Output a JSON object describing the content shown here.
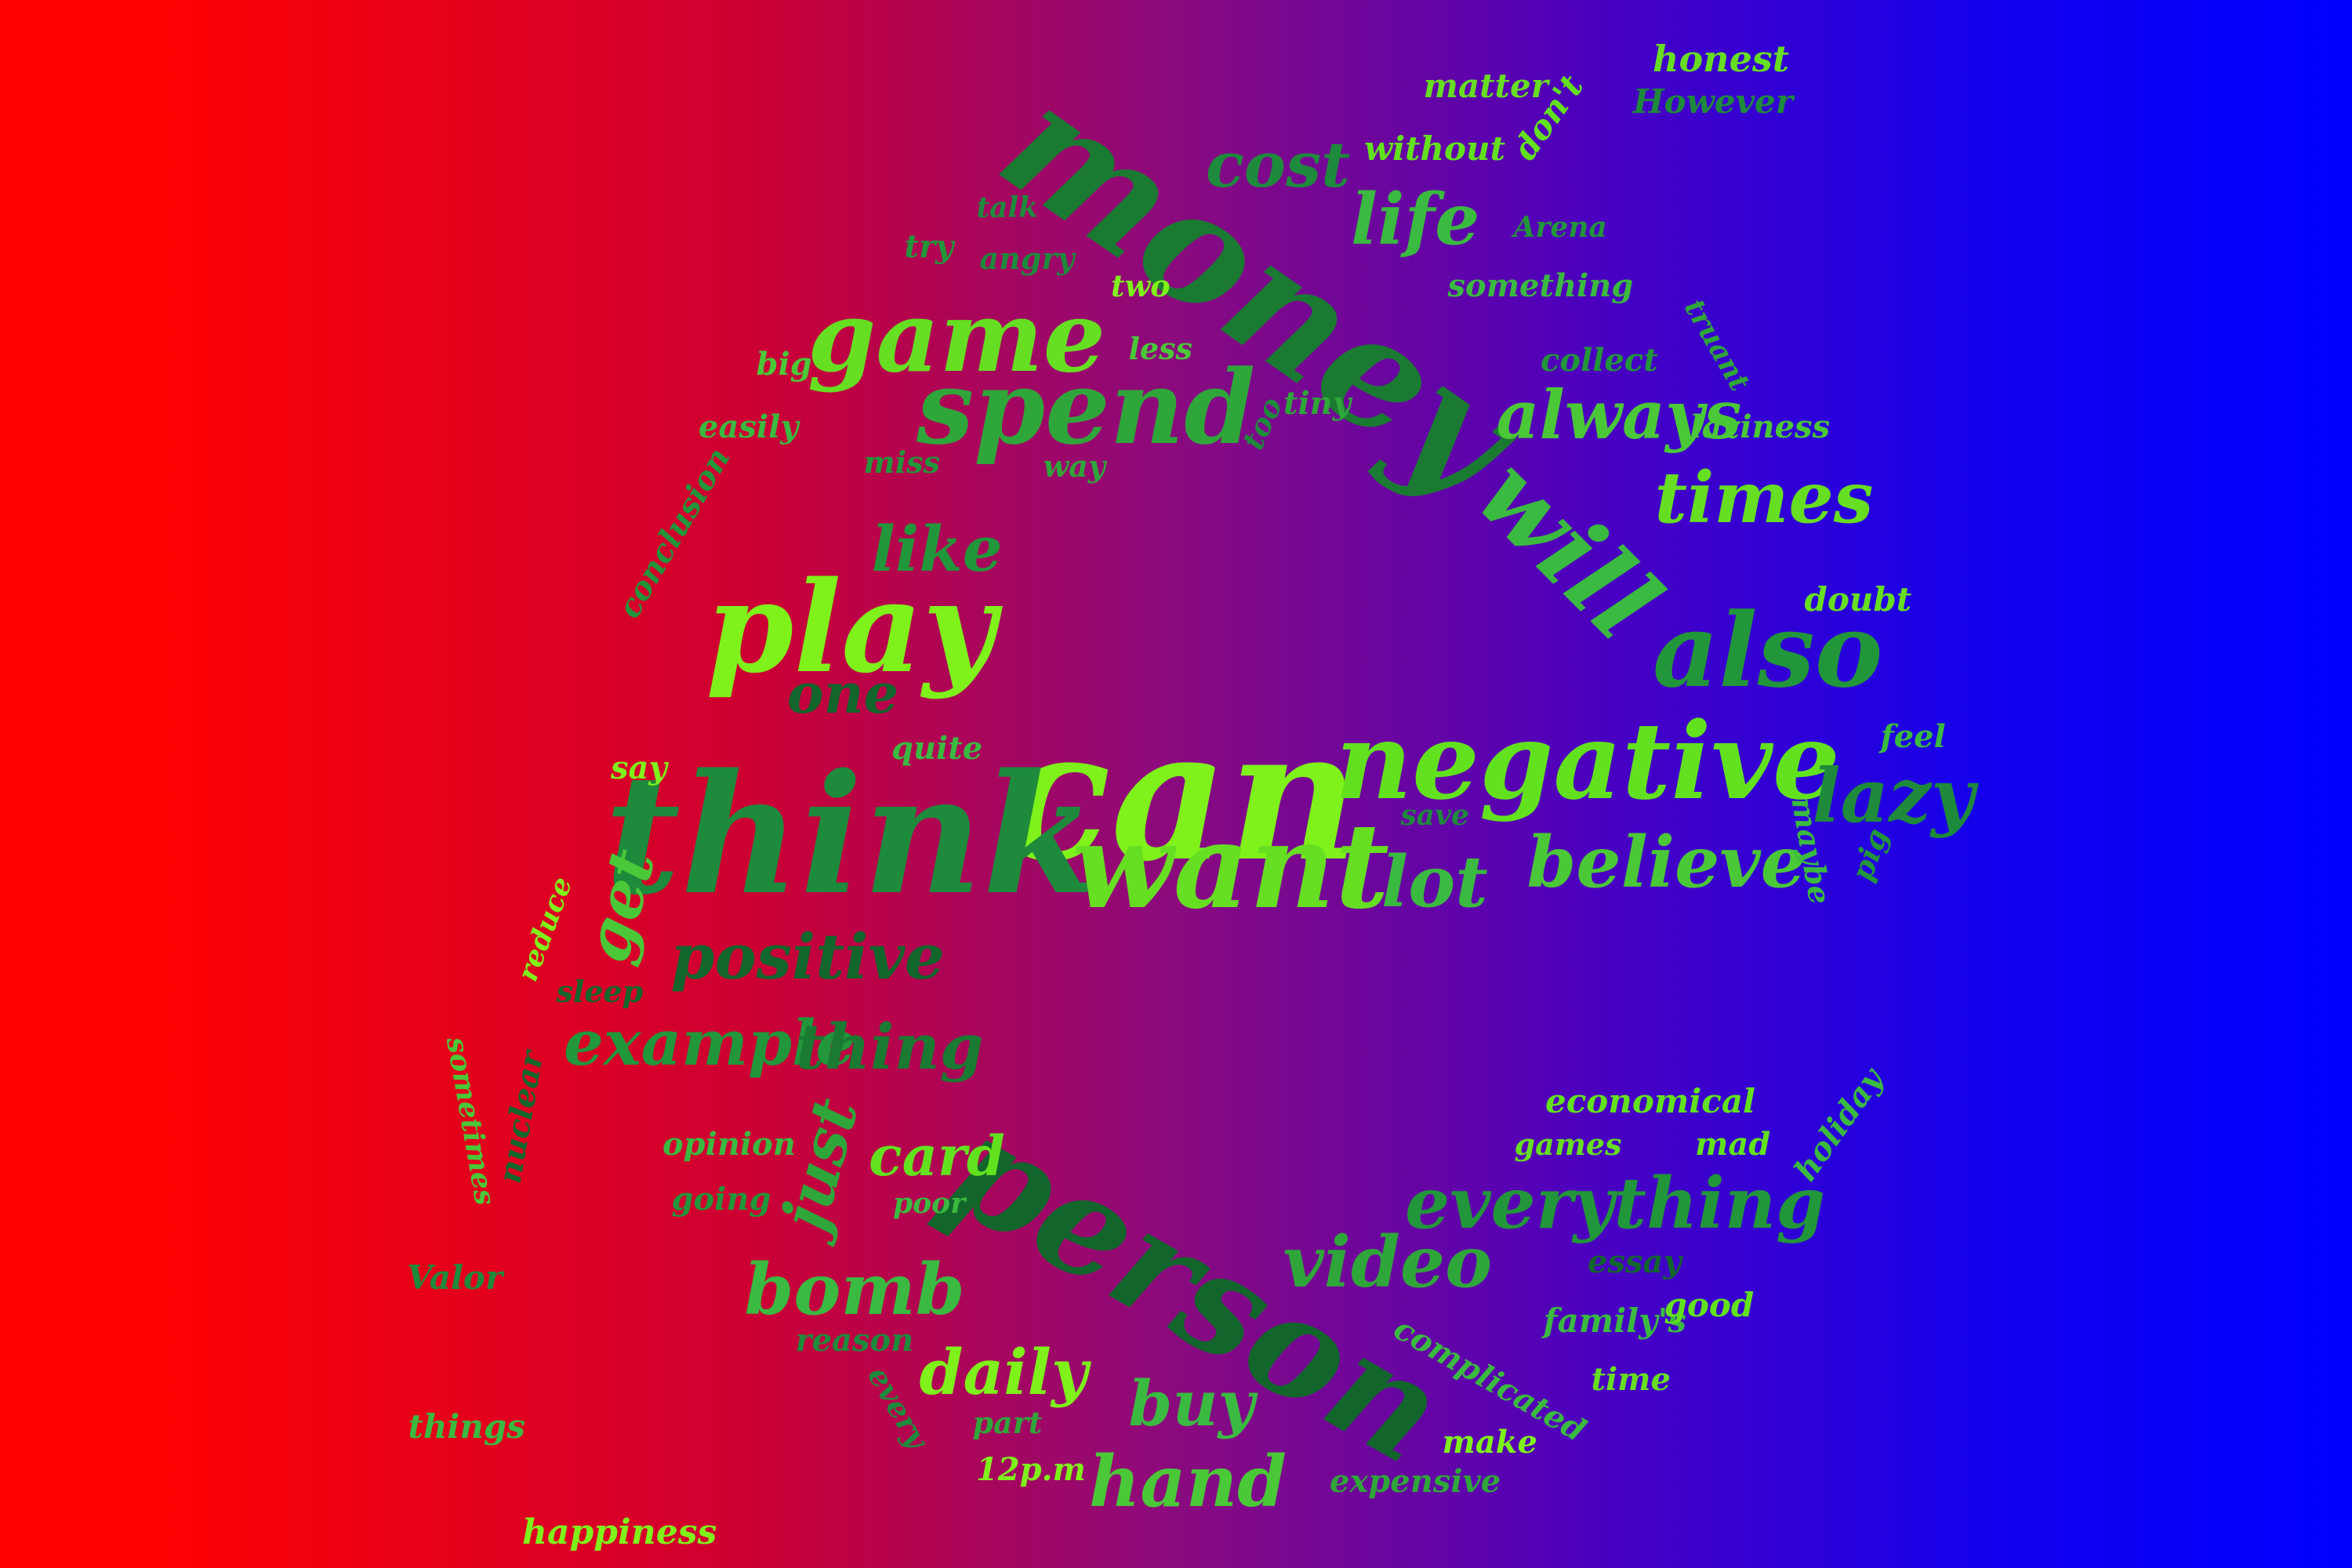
{
  "colors": {
    "gradient_left": "#ff0000",
    "gradient_mid": "#8a0a7e",
    "gradient_right": "#0000ff"
  },
  "words": [
    {
      "text": "can",
      "color": "#7ef21a"
    },
    {
      "text": "think",
      "color": "#1e8a3c"
    },
    {
      "text": "money",
      "color": "#1a7a32"
    },
    {
      "text": "person",
      "color": "#12662c"
    },
    {
      "text": "negative",
      "color": "#62e21e"
    },
    {
      "text": "want",
      "color": "#66de22"
    },
    {
      "text": "play",
      "color": "#7ef21a"
    },
    {
      "text": "game",
      "color": "#66de22"
    },
    {
      "text": "spend",
      "color": "#2fa63a"
    },
    {
      "text": "also",
      "color": "#22963a"
    },
    {
      "text": "will",
      "color": "#3aba40"
    },
    {
      "text": "always",
      "color": "#4ac838"
    },
    {
      "text": "times",
      "color": "#66de22"
    },
    {
      "text": "believe",
      "color": "#4ac838"
    },
    {
      "text": "lazy",
      "color": "#1e8a3c"
    },
    {
      "text": "lot",
      "color": "#3aba40"
    },
    {
      "text": "positive",
      "color": "#12662c"
    },
    {
      "text": "example",
      "color": "#22963a"
    },
    {
      "text": "thing",
      "color": "#1a7a32"
    },
    {
      "text": "everything",
      "color": "#22963a"
    },
    {
      "text": "video",
      "color": "#2fa63a"
    },
    {
      "text": "bomb",
      "color": "#3aba40"
    },
    {
      "text": "daily",
      "color": "#7ef21a"
    },
    {
      "text": "buy",
      "color": "#3aba40"
    },
    {
      "text": "hand",
      "color": "#4ac838"
    },
    {
      "text": "card",
      "color": "#62e21e"
    },
    {
      "text": "like",
      "color": "#22963a"
    },
    {
      "text": "one",
      "color": "#12662c"
    },
    {
      "text": "cost",
      "color": "#1e8a3c"
    },
    {
      "text": "life",
      "color": "#3aba40"
    },
    {
      "text": "get",
      "color": "#4ac838"
    },
    {
      "text": "just",
      "color": "#2fa63a"
    },
    {
      "text": "matter",
      "color": "#66de22"
    },
    {
      "text": "don't",
      "color": "#62e21e"
    },
    {
      "text": "honest",
      "color": "#66de22"
    },
    {
      "text": "However",
      "color": "#1e8a3c"
    },
    {
      "text": "without",
      "color": "#62e21e"
    },
    {
      "text": "talk",
      "color": "#1e8a3c"
    },
    {
      "text": "Arena",
      "color": "#22963a"
    },
    {
      "text": "try",
      "color": "#22963a"
    },
    {
      "text": "angry",
      "color": "#1e8a3c"
    },
    {
      "text": "two",
      "color": "#7ef21a"
    },
    {
      "text": "something",
      "color": "#3aba40"
    },
    {
      "text": "truant",
      "color": "#2fa63a"
    },
    {
      "text": "big",
      "color": "#4ac838"
    },
    {
      "text": "less",
      "color": "#4ac838"
    },
    {
      "text": "too",
      "color": "#1e8a3c"
    },
    {
      "text": "tiny",
      "color": "#2fa63a"
    },
    {
      "text": "collect",
      "color": "#22963a"
    },
    {
      "text": "easily",
      "color": "#3aba40"
    },
    {
      "text": "laziness",
      "color": "#4ac838"
    },
    {
      "text": "miss",
      "color": "#22963a"
    },
    {
      "text": "way",
      "color": "#2fa63a"
    },
    {
      "text": "conclusion",
      "color": "#22963a"
    },
    {
      "text": "doubt",
      "color": "#66de22"
    },
    {
      "text": "feel",
      "color": "#3aba40"
    },
    {
      "text": "quite",
      "color": "#3aba40"
    },
    {
      "text": "say",
      "color": "#7ef21a"
    },
    {
      "text": "save",
      "color": "#1e8a3c"
    },
    {
      "text": "maybe",
      "color": "#3aba40"
    },
    {
      "text": "pig",
      "color": "#22963a"
    },
    {
      "text": "reduce",
      "color": "#7ef21a"
    },
    {
      "text": "sleep",
      "color": "#12662c"
    },
    {
      "text": "sometimes",
      "color": "#4ac838"
    },
    {
      "text": "nuclear",
      "color": "#12662c"
    },
    {
      "text": "economical",
      "color": "#62e21e"
    },
    {
      "text": "opinion",
      "color": "#3aba40"
    },
    {
      "text": "games",
      "color": "#66de22"
    },
    {
      "text": "mad",
      "color": "#62e21e"
    },
    {
      "text": "holiday",
      "color": "#3aba40"
    },
    {
      "text": "going",
      "color": "#22963a"
    },
    {
      "text": "poor",
      "color": "#3aba40"
    },
    {
      "text": "essay",
      "color": "#12662c"
    },
    {
      "text": "Valor",
      "color": "#1e8a3c"
    },
    {
      "text": "family's",
      "color": "#3aba40"
    },
    {
      "text": "good",
      "color": "#62e21e"
    },
    {
      "text": "reason",
      "color": "#1e8a3c"
    },
    {
      "text": "complicated",
      "color": "#3aba40"
    },
    {
      "text": "every",
      "color": "#1e8a3c"
    },
    {
      "text": "time",
      "color": "#66de22"
    },
    {
      "text": "part",
      "color": "#2fa63a"
    },
    {
      "text": "things",
      "color": "#3aba40"
    },
    {
      "text": "12p.m",
      "color": "#7ef21a"
    },
    {
      "text": "expensive",
      "color": "#2fa63a"
    },
    {
      "text": "make",
      "color": "#7ef21a"
    },
    {
      "text": "happiness",
      "color": "#7ef21a"
    }
  ]
}
